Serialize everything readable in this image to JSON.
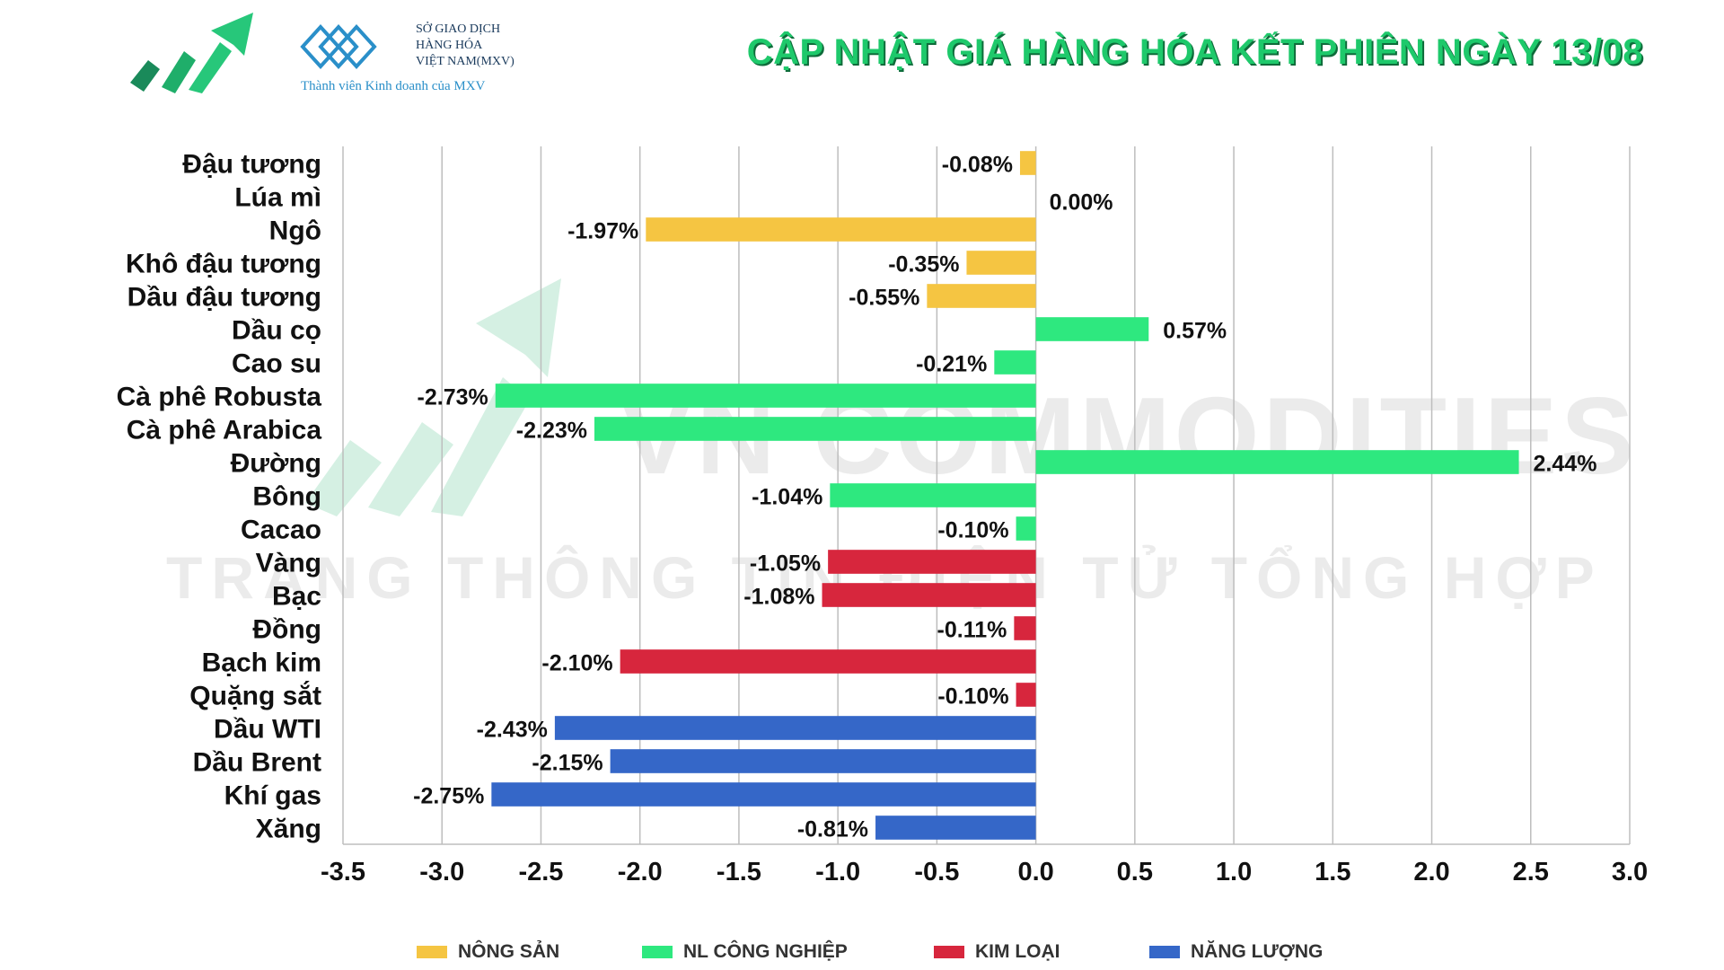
{
  "header": {
    "title": "CẬP NHẬT GIÁ HÀNG HÓA KẾT PHIÊN NGÀY 13/08",
    "mxv_name_lines": [
      "SỞ GIAO DỊCH",
      "HÀNG HÓA",
      "VIỆT NAM(MXV)"
    ],
    "mxv_member": "Thành viên Kinh doanh của MXV",
    "logo_icon": "green-growth-arrow-icon",
    "mxv_icon": "mxv-diamond-logo-icon"
  },
  "watermark": {
    "line1": "VN COMMODITIES",
    "line2": "TRANG THÔNG TIN ĐIỆN TỬ TỔNG HỢP"
  },
  "colors": {
    "nong_san": "#f5c542",
    "nl_cong_nghiep": "#2ee87f",
    "kim_loai": "#d7263d",
    "nang_luong": "#3567c8",
    "title": "#1ec96b"
  },
  "chart_data": {
    "type": "bar",
    "orientation": "horizontal",
    "categories": [
      "Đậu tương",
      "Lúa mì",
      "Ngô",
      "Khô đậu tương",
      "Dầu đậu tương",
      "Dầu cọ",
      "Cao su",
      "Cà phê Robusta",
      "Cà phê Arabica",
      "Đường",
      "Bông",
      "Cacao",
      "Vàng",
      "Bạc",
      "Đồng",
      "Bạch kim",
      "Quặng sắt",
      "Dầu WTI",
      "Dầu Brent",
      "Khí gas",
      "Xăng"
    ],
    "values": [
      -0.08,
      0.0,
      -1.97,
      -0.35,
      -0.55,
      0.57,
      -0.21,
      -2.73,
      -2.23,
      2.44,
      -1.04,
      -0.1,
      -1.05,
      -1.08,
      -0.11,
      -2.1,
      -0.1,
      -2.43,
      -2.15,
      -2.75,
      -0.81
    ],
    "value_labels": [
      "-0.08%",
      "0.00%",
      "-1.97%",
      "-0.35%",
      "-0.55%",
      "0.57%",
      "-0.21%",
      "-2.73%",
      "-2.23%",
      "2.44%",
      "-1.04%",
      "-0.10%",
      "-1.05%",
      "-1.08%",
      "-0.11%",
      "-2.10%",
      "-0.10%",
      "-2.43%",
      "-2.15%",
      "-2.75%",
      "-0.81%"
    ],
    "groups": [
      "nong_san",
      "nong_san",
      "nong_san",
      "nong_san",
      "nong_san",
      "nl_cong_nghiep",
      "nl_cong_nghiep",
      "nl_cong_nghiep",
      "nl_cong_nghiep",
      "nl_cong_nghiep",
      "nl_cong_nghiep",
      "nl_cong_nghiep",
      "kim_loai",
      "kim_loai",
      "kim_loai",
      "kim_loai",
      "kim_loai",
      "nang_luong",
      "nang_luong",
      "nang_luong",
      "nang_luong"
    ],
    "xlim": [
      -3.5,
      3.0
    ],
    "xticks": [
      -3.5,
      -3.0,
      -2.5,
      -2.0,
      -1.5,
      -1.0,
      -0.5,
      0.0,
      0.5,
      1.0,
      1.5,
      2.0,
      2.5,
      3.0
    ],
    "xtick_labels": [
      "-3.5",
      "-3.0",
      "-2.5",
      "-2.0",
      "-1.5",
      "-1.0",
      "-0.5",
      "0.0",
      "0.5",
      "1.0",
      "1.5",
      "2.0",
      "2.5",
      "3.0"
    ],
    "grid": "vertical",
    "legend": [
      {
        "key": "nong_san",
        "label": "NÔNG SẢN"
      },
      {
        "key": "nl_cong_nghiep",
        "label": "NL CÔNG NGHIỆP"
      },
      {
        "key": "kim_loai",
        "label": "KIM LOẠI"
      },
      {
        "key": "nang_luong",
        "label": "NĂNG LƯỢNG"
      }
    ],
    "legend_position": "bottom"
  }
}
